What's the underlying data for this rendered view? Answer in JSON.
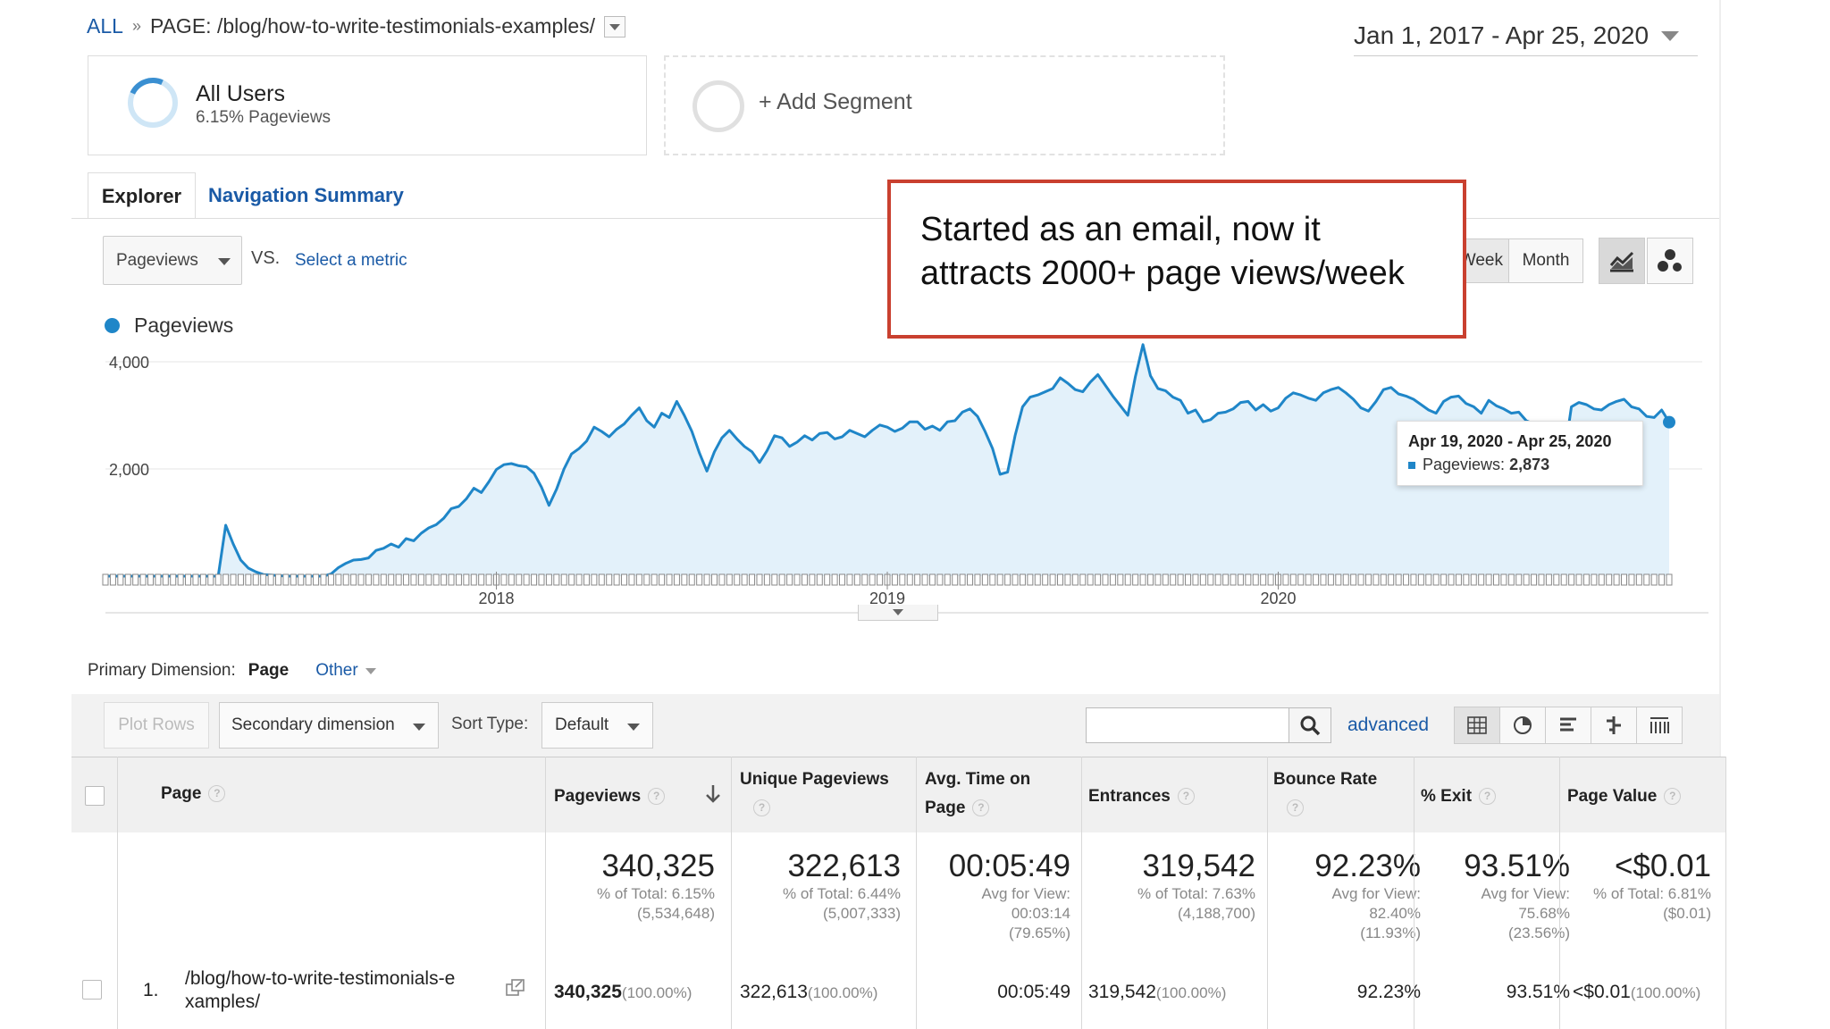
{
  "breadcrumb": {
    "all": "ALL",
    "separator": "»",
    "page_prefix": "PAGE:",
    "page_path": "/blog/how-to-write-testimonials-examples/"
  },
  "date_range": "Jan 1, 2017 - Apr 25, 2020",
  "segments": {
    "all_users_title": "All Users",
    "all_users_sub": "6.15% Pageviews",
    "add_segment": "+ Add Segment"
  },
  "tabs": {
    "explorer": "Explorer",
    "navigation_summary": "Navigation Summary"
  },
  "metric": {
    "selected": "Pageviews",
    "vs": "VS.",
    "select_metric": "Select a metric"
  },
  "granularity": {
    "week": "Week",
    "month": "Month"
  },
  "callout": {
    "line1": "Started as an email, now it",
    "line2": "attracts 2000+ page views/week"
  },
  "tooltip": {
    "range": "Apr 19, 2020 - Apr 25, 2020",
    "label": "Pageviews:",
    "value": "2,873"
  },
  "colors": {
    "series": "#1f86c8",
    "fill": "#e3f1fa",
    "callout_border": "#c9402f",
    "link": "#1a5aa6"
  },
  "chart_data": {
    "type": "area",
    "legend": "Pageviews",
    "yticks": [
      "4,000",
      "2,000"
    ],
    "ylim": [
      0,
      4000
    ],
    "xticks": [
      "2018",
      "2019",
      "2020"
    ],
    "x_start": "Jan 2017",
    "x_end": "Apr 2020",
    "granularity": "week",
    "series": [
      {
        "name": "Pageviews",
        "values": [
          0,
          0,
          0,
          0,
          0,
          0,
          0,
          0,
          0,
          0,
          0,
          0,
          0,
          0,
          0,
          0,
          950,
          600,
          300,
          150,
          80,
          30,
          20,
          10,
          0,
          0,
          0,
          0,
          0,
          0,
          40,
          160,
          240,
          300,
          310,
          340,
          480,
          520,
          600,
          540,
          700,
          660,
          800,
          900,
          960,
          1080,
          1260,
          1300,
          1440,
          1640,
          1560,
          1760,
          1990,
          2080,
          2100,
          2060,
          2040,
          1920,
          1660,
          1320,
          1620,
          2000,
          2280,
          2380,
          2520,
          2780,
          2700,
          2600,
          2740,
          2840,
          3000,
          3140,
          2900,
          2780,
          3040,
          2960,
          3260,
          3000,
          2700,
          2300,
          1960,
          2320,
          2580,
          2720,
          2560,
          2420,
          2320,
          2120,
          2340,
          2620,
          2580,
          2420,
          2500,
          2620,
          2540,
          2660,
          2680,
          2560,
          2600,
          2720,
          2660,
          2600,
          2720,
          2820,
          2780,
          2700,
          2760,
          2880,
          2880,
          2740,
          2800,
          2720,
          2880,
          2900,
          3060,
          3120,
          2980,
          2700,
          2380,
          1900,
          1940,
          2620,
          3160,
          3340,
          3380,
          3440,
          3500,
          3700,
          3600,
          3480,
          3440,
          3620,
          3760,
          3560,
          3360,
          3180,
          3000,
          3720,
          4320,
          3740,
          3500,
          3460,
          3340,
          3280,
          3040,
          3100,
          2880,
          2920,
          3040,
          3060,
          3120,
          3240,
          3260,
          3100,
          3200,
          3080,
          3140,
          3320,
          3420,
          3380,
          3320,
          3280,
          3420,
          3480,
          3520,
          3420,
          3300,
          3140,
          3080,
          3260,
          3480,
          3520,
          3400,
          3360,
          3300,
          3200,
          3100,
          3040,
          3260,
          3340,
          3360,
          3220,
          3160,
          3040,
          3280,
          3180,
          3120,
          3040,
          3060,
          2900,
          2840,
          2500,
          1880,
          1760,
          2200,
          3160,
          3240,
          3200,
          3120,
          3100,
          3200,
          3260,
          3300,
          3160,
          3120,
          2980,
          2960,
          3100,
          2873
        ]
      }
    ]
  },
  "primary_dimension": {
    "label": "Primary Dimension:",
    "current": "Page",
    "other": "Other"
  },
  "toolbar": {
    "plot_rows": "Plot Rows",
    "secondary_dimension": "Secondary dimension",
    "sort_type_label": "Sort Type:",
    "sort_type_value": "Default",
    "search_value": "",
    "advanced": "advanced"
  },
  "table": {
    "columns": {
      "page": "Page",
      "pageviews": "Pageviews",
      "unique_pageviews": "Unique Pageviews",
      "avg_time_1": "Avg. Time on",
      "avg_time_2": "Page",
      "entrances": "Entrances",
      "bounce_rate": "Bounce Rate",
      "exit": "% Exit",
      "page_value": "Page Value"
    },
    "totals": {
      "pageviews": {
        "value": "340,325",
        "l1": "% of Total: 6.15%",
        "l2": "(5,534,648)"
      },
      "unique_pageviews": {
        "value": "322,613",
        "l1": "% of Total: 6.44%",
        "l2": "(5,007,333)"
      },
      "avg_time": {
        "value": "00:05:49",
        "l1": "Avg for View:",
        "l2": "00:03:14",
        "l3": "(79.65%)"
      },
      "entrances": {
        "value": "319,542",
        "l1": "% of Total: 7.63%",
        "l2": "(4,188,700)"
      },
      "bounce_rate": {
        "value": "92.23%",
        "l1": "Avg for View:",
        "l2": "82.40%",
        "l3": "(11.93%)"
      },
      "exit": {
        "value": "93.51%",
        "l1": "Avg for View:",
        "l2": "75.68%",
        "l3": "(23.56%)"
      },
      "page_value": {
        "value": "<$0.01",
        "l1": "% of Total: 6.81%",
        "l2": "($0.01)"
      }
    },
    "rows": [
      {
        "index": "1.",
        "page_line1": "/blog/how-to-write-testimonials-e",
        "page_line2": "xamples/",
        "pageviews": "340,325",
        "pageviews_pct": "(100.00%)",
        "unique_pageviews": "322,613",
        "unique_pct": "(100.00%)",
        "avg_time": "00:05:49",
        "entrances": "319,542",
        "entrances_pct": "(100.00%)",
        "bounce_rate": "92.23%",
        "exit": "93.51%",
        "page_value": "<$0.01",
        "page_value_pct": "(100.00%)"
      }
    ]
  }
}
